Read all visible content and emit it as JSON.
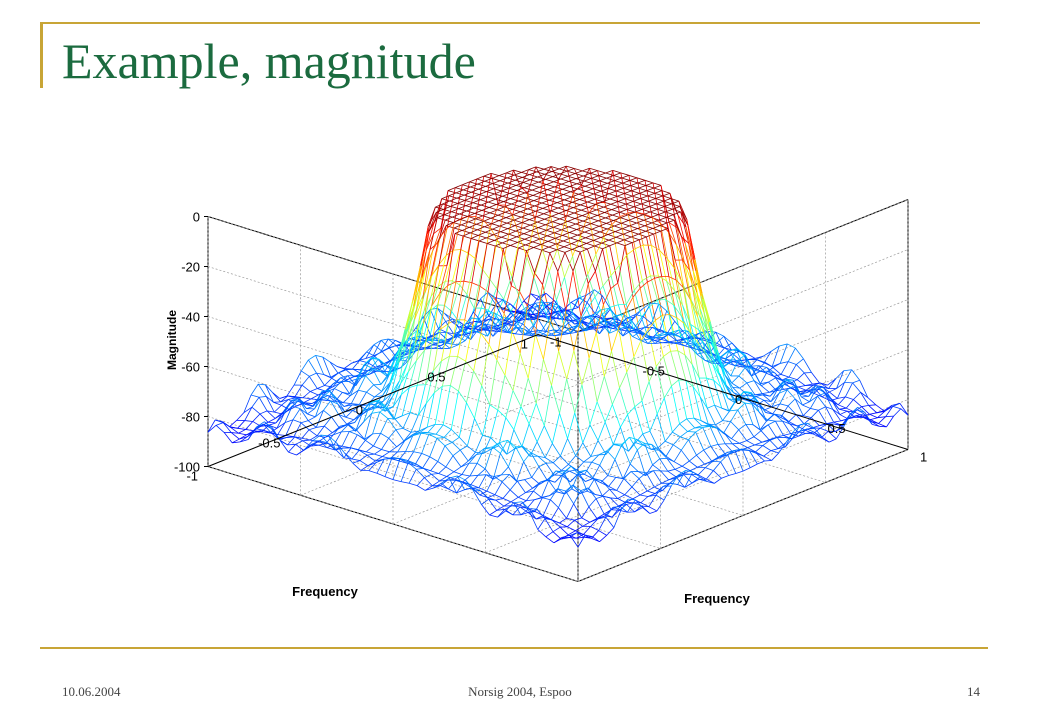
{
  "slide": {
    "title": "Example, magnitude",
    "footer_left": "10.06.2004",
    "footer_center": "Norsig 2004, Espoo",
    "footer_right": "14",
    "accent_color": "#c8a536",
    "title_color": "#1b6b3f"
  },
  "chart_data": {
    "type": "surface",
    "title": "",
    "xlabel": "Frequency",
    "ylabel": "Frequency",
    "zlabel": "Magnitude",
    "xlim": [
      -1,
      1
    ],
    "ylim": [
      -1,
      1
    ],
    "zlim": [
      -100,
      0
    ],
    "x_ticks": [
      "-1",
      "-0.5",
      "0",
      "0.5",
      "1"
    ],
    "y_ticks": [
      "-1",
      "-0.5",
      "0",
      "0.5",
      "1"
    ],
    "z_ticks": [
      "-100",
      "-80",
      "-60",
      "-40",
      "-20",
      "0"
    ],
    "grid": true,
    "colormap": "jet",
    "passband_radius": 0.5,
    "passband_level": 0,
    "stopband_level": -60,
    "ripple_minimum": -100
  }
}
